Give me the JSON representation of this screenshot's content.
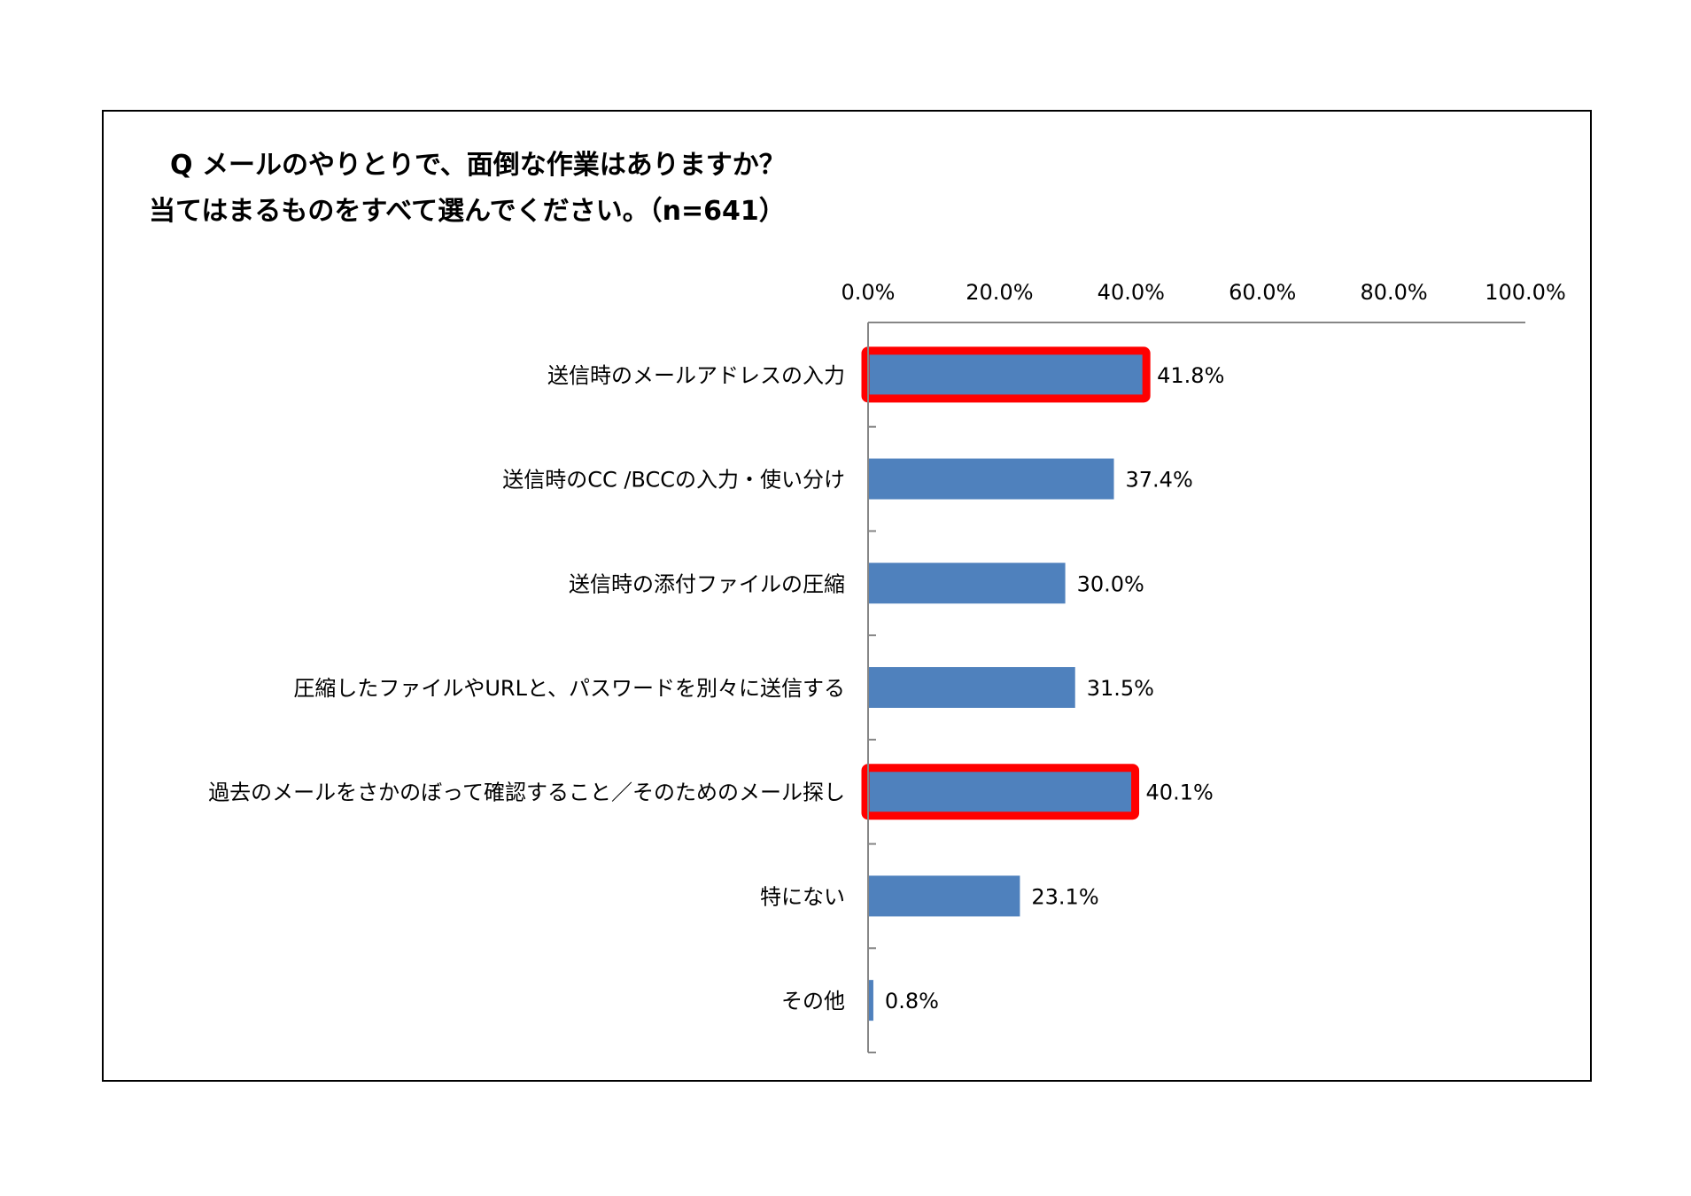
{
  "title": {
    "line1": "Q メールのやりとりで、面倒な作業はありますか？",
    "line2": "当てはまるものをすべて選んでください。（n=641）"
  },
  "colors": {
    "bar": "#4f81bd",
    "highlight": "#ff0000",
    "axis": "#868686"
  },
  "chart_data": {
    "type": "bar",
    "orientation": "horizontal",
    "title": "Q メールのやりとりで、面倒な作業はありますか？ 当てはまるものをすべて選んでください。（n=641）",
    "categories": [
      "送信時のメールアドレスの入力",
      "送信時のCC /BCCの入力・使い分け",
      "送信時の添付ファイルの圧縮",
      "圧縮したファイルやURLと、パスワードを別々に送信する",
      "過去のメールをさかのぼって確認すること／そのためのメール探し",
      "特にない",
      "その他"
    ],
    "values": [
      41.8,
      37.4,
      30.0,
      31.5,
      40.1,
      23.1,
      0.8
    ],
    "value_labels": [
      "41.8%",
      "37.4%",
      "30.0%",
      "31.5%",
      "40.1%",
      "23.1%",
      "0.8%"
    ],
    "highlighted": [
      true,
      false,
      false,
      false,
      true,
      false,
      false
    ],
    "xlim": [
      0,
      100
    ],
    "xticks": [
      0,
      20,
      40,
      60,
      80,
      100
    ],
    "xtick_labels": [
      "0.0%",
      "20.0%",
      "40.0%",
      "60.0%",
      "80.0%",
      "100.0%"
    ],
    "x_axis_position": "top",
    "xlabel": "",
    "ylabel": "",
    "grid": false,
    "legend": "none"
  }
}
